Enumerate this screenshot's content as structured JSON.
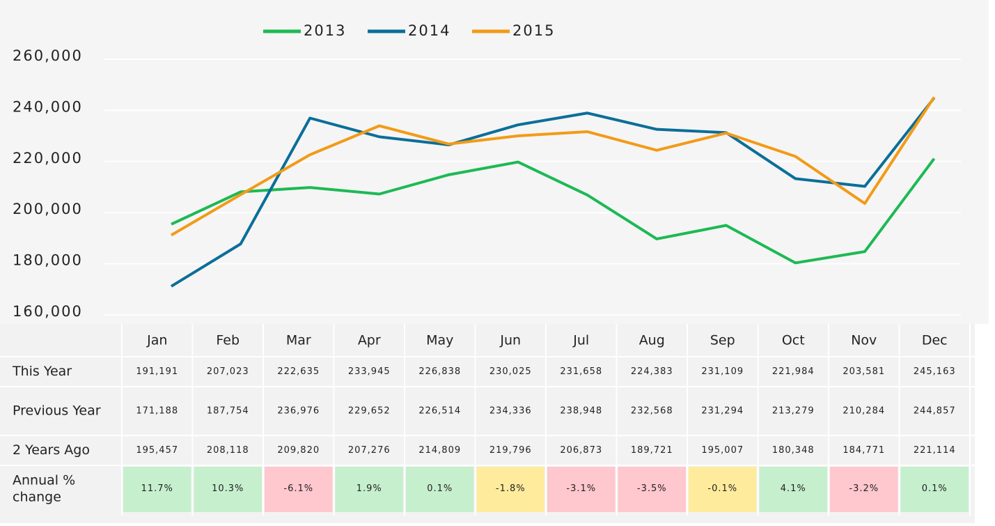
{
  "chart_data": {
    "type": "line",
    "categories": [
      "Jan",
      "Feb",
      "Mar",
      "Apr",
      "May",
      "Jun",
      "Jul",
      "Aug",
      "Sep",
      "Oct",
      "Nov",
      "Dec"
    ],
    "series": [
      {
        "name": "2013",
        "color": "#1db954",
        "row_label": "2 Years Ago",
        "values": [
          195457,
          208118,
          209820,
          207276,
          214809,
          219796,
          206873,
          189721,
          195007,
          180348,
          184771,
          221114
        ],
        "value_labels": [
          "195,457",
          "208,118",
          "209,820",
          "207,276",
          "214,809",
          "219,796",
          "206,873",
          "189,721",
          "195,007",
          "180,348",
          "184,771",
          "221,114"
        ]
      },
      {
        "name": "2014",
        "color": "#0b6e99",
        "row_label": "Previous Year",
        "values": [
          171188,
          187754,
          236976,
          229652,
          226514,
          234336,
          238948,
          232568,
          231294,
          213279,
          210284,
          244857
        ],
        "value_labels": [
          "171,188",
          "187,754",
          "236,976",
          "229,652",
          "226,514",
          "234,336",
          "238,948",
          "232,568",
          "231,294",
          "213,279",
          "210,284",
          "244,857"
        ]
      },
      {
        "name": "2015",
        "color": "#f29b17",
        "row_label": "This Year",
        "values": [
          191191,
          207023,
          222635,
          233945,
          226838,
          230025,
          231658,
          224383,
          231109,
          221984,
          203581,
          245163
        ],
        "value_labels": [
          "191,191",
          "207,023",
          "222,635",
          "233,945",
          "226,838",
          "230,025",
          "231,658",
          "224,383",
          "231,109",
          "221,984",
          "203,581",
          "245,163"
        ]
      }
    ],
    "ylim": [
      160000,
      260000
    ],
    "yticks": [
      {
        "value": 160000,
        "label": "160,000"
      },
      {
        "value": 180000,
        "label": "180,000"
      },
      {
        "value": 200000,
        "label": "200,000"
      },
      {
        "value": 220000,
        "label": "220,000"
      },
      {
        "value": 240000,
        "label": "240,000"
      },
      {
        "value": 260000,
        "label": "260,000"
      }
    ],
    "grid": true,
    "table_row_order": [
      2,
      1,
      0
    ],
    "annual_change": {
      "label": "Annual % change",
      "values": [
        "11.7%",
        "10.3%",
        "-6.1%",
        "1.9%",
        "0.1%",
        "-1.8%",
        "-3.1%",
        "-3.5%",
        "-0.1%",
        "4.1%",
        "-3.2%",
        "0.1%"
      ],
      "colors": [
        "#c6efce",
        "#c6efce",
        "#ffc7ce",
        "#c6efce",
        "#c6efce",
        "#ffeb9c",
        "#ffc7ce",
        "#ffc7ce",
        "#ffeb9c",
        "#c6efce",
        "#ffc7ce",
        "#c6efce"
      ]
    }
  }
}
